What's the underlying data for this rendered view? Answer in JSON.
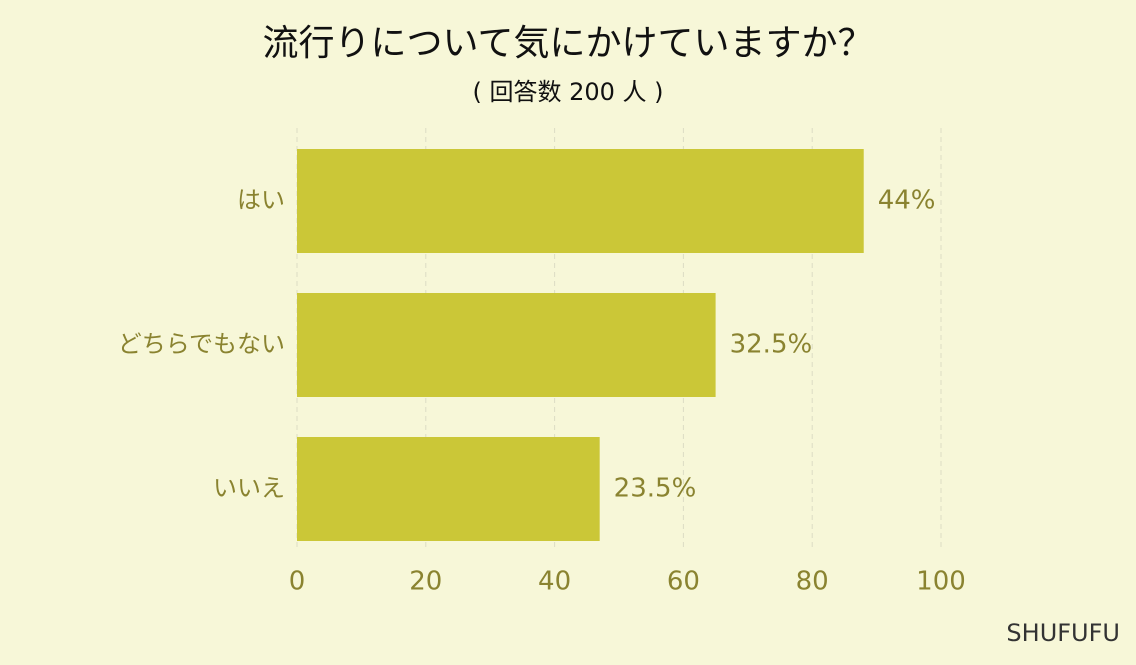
{
  "chart_data": {
    "type": "hbar",
    "title": "流行りについて気にかけていますか？",
    "subtitle": "( 回答数 200 人 )",
    "categories": [
      "はい",
      "どちらでもない",
      "いいえ"
    ],
    "values": [
      88,
      65,
      47
    ],
    "value_labels": [
      "44%",
      "32.5%",
      "23.5%"
    ],
    "color": "#cbc737",
    "xlim": [
      0,
      100
    ],
    "xticks": [
      0,
      20,
      40,
      60,
      80,
      100
    ],
    "grid": true,
    "watermark": "SHUFUFU"
  }
}
